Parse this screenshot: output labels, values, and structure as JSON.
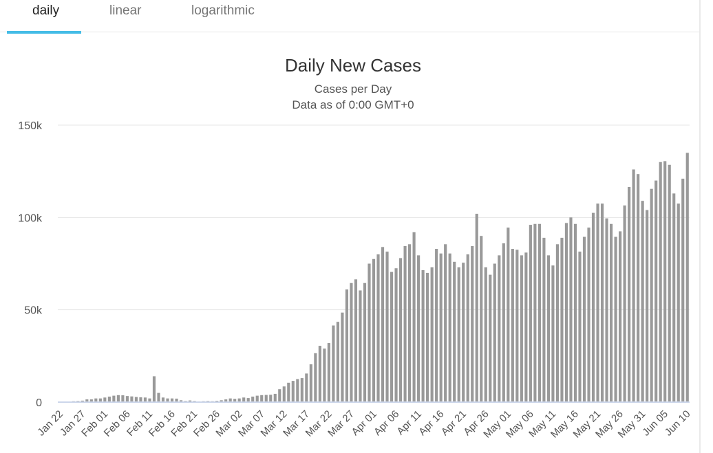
{
  "tabs": [
    {
      "label": "daily",
      "active": true
    },
    {
      "label": "linear",
      "active": false
    },
    {
      "label": "logarithmic",
      "active": false
    }
  ],
  "colors": {
    "bar": "#999999",
    "accent": "#44bce6",
    "grid": "#e6e6e6",
    "baseline": "#ccd6eb"
  },
  "chart_data": {
    "type": "bar",
    "title": "Daily New Cases",
    "subtitle": "Cases per Day",
    "subtitle2": "Data as of 0:00 GMT+0",
    "xlabel": "",
    "ylabel": "",
    "ylim": [
      0,
      150000
    ],
    "yticks": [
      0,
      50000,
      100000,
      150000
    ],
    "ytick_labels": [
      "0",
      "50k",
      "100k",
      "150k"
    ],
    "grid": true,
    "legend": "none",
    "xtick_labels": [
      "Jan 22",
      "Jan 27",
      "Feb 01",
      "Feb 06",
      "Feb 11",
      "Feb 16",
      "Feb 21",
      "Feb 26",
      "Mar 02",
      "Mar 07",
      "Mar 12",
      "Mar 17",
      "Mar 22",
      "Mar 27",
      "Apr 01",
      "Apr 06",
      "Apr 11",
      "Apr 16",
      "Apr 21",
      "Apr 26",
      "May 01",
      "May 06",
      "May 11",
      "May 16",
      "May 21",
      "May 26",
      "May 31",
      "Jun 05",
      "Jun 10"
    ],
    "x_start": "Jan 22",
    "x_end": "Jun 10",
    "values": [
      0,
      100,
      100,
      500,
      600,
      800,
      1500,
      1500,
      2000,
      2000,
      2500,
      3000,
      3500,
      3800,
      3700,
      3300,
      3100,
      2800,
      2600,
      2500,
      2000,
      14000,
      5000,
      2500,
      2000,
      2000,
      1900,
      1000,
      600,
      900,
      600,
      400,
      500,
      600,
      500,
      700,
      1000,
      1500,
      2000,
      1800,
      2000,
      2500,
      2200,
      3000,
      3500,
      3800,
      3900,
      4000,
      4500,
      7000,
      8500,
      10500,
      11500,
      12500,
      13000,
      15500,
      20500,
      26500,
      30500,
      29000,
      32000,
      41500,
      43500,
      48500,
      61000,
      64500,
      66500,
      60500,
      64500,
      75000,
      77500,
      80000,
      84000,
      81500,
      70500,
      72500,
      78000,
      84500,
      85500,
      92000,
      79500,
      71500,
      70000,
      73000,
      83000,
      80500,
      85500,
      80500,
      76000,
      73000,
      75500,
      80000,
      84500,
      102000,
      90000,
      73000,
      69000,
      75000,
      79500,
      86000,
      94500,
      83000,
      82500,
      79500,
      81000,
      96000,
      96500,
      96500,
      89000,
      79500,
      74000,
      85500,
      89000,
      97000,
      100000,
      96500,
      81500,
      89500,
      94500,
      102500,
      107500,
      107500,
      99500,
      96500,
      89500,
      92500,
      106500,
      116500,
      126000,
      123500,
      109000,
      104000,
      115500,
      120000,
      130000,
      130500,
      128500,
      113000,
      107500,
      121000,
      135000
    ]
  }
}
